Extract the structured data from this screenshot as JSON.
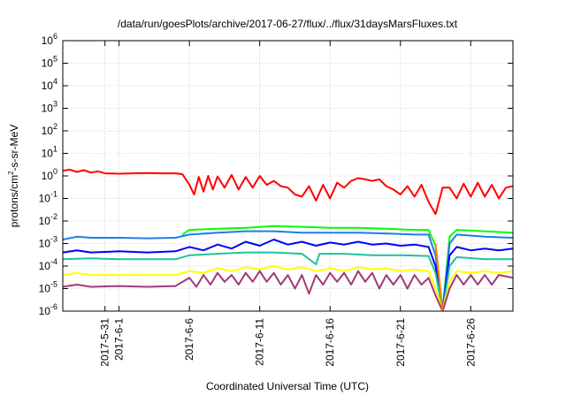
{
  "chart_data": {
    "type": "line",
    "title": "/data/run/goesPlots/archive/2017-06-27/flux/../flux/31daysMarsFluxes.txt",
    "xlabel": "Coordinated Universal Time (UTC)",
    "ylabel_parts": {
      "base": "protons/cm",
      "sup": "2",
      "rest": "-s-sr-MeV"
    },
    "xlim": [
      "2017-05-28",
      "2017-06-29"
    ],
    "x_ticks": [
      {
        "date": "2017-05-31",
        "label": "2017-5-31"
      },
      {
        "date": "2017-06-01",
        "label": "2017-6-1"
      },
      {
        "date": "2017-06-06",
        "label": "2017-6-6"
      },
      {
        "date": "2017-06-11",
        "label": "2017-6-11"
      },
      {
        "date": "2017-06-16",
        "label": "2017-6-16"
      },
      {
        "date": "2017-06-21",
        "label": "2017-6-21"
      },
      {
        "date": "2017-06-26",
        "label": "2017-6-26"
      }
    ],
    "y_scale": "log",
    "ylim": [
      1e-06,
      1000000.0
    ],
    "y_ticks": [
      {
        "base": "10",
        "exp": "-6"
      },
      {
        "base": "10",
        "exp": "-5"
      },
      {
        "base": "10",
        "exp": "-4"
      },
      {
        "base": "10",
        "exp": "-3"
      },
      {
        "base": "10",
        "exp": "-2"
      },
      {
        "base": "10",
        "exp": "-1"
      },
      {
        "base": "10",
        "exp": "0"
      },
      {
        "base": "10",
        "exp": "1"
      },
      {
        "base": "10",
        "exp": "2"
      },
      {
        "base": "10",
        "exp": "3"
      },
      {
        "base": "10",
        "exp": "4"
      },
      {
        "base": "10",
        "exp": "5"
      },
      {
        "base": "10",
        "exp": "6"
      }
    ],
    "grid": true,
    "series": [
      {
        "color": "#ff0000",
        "points": [
          [
            "2017-05-28",
            1.7
          ],
          [
            "2017-05-28T12:00",
            1.9
          ],
          [
            "2017-05-29",
            1.5
          ],
          [
            "2017-05-29T12:00",
            1.8
          ],
          [
            "2017-05-30",
            1.4
          ],
          [
            "2017-05-30T12:00",
            1.6
          ],
          [
            "2017-05-31",
            1.3
          ],
          [
            "2017-06-01",
            1.25
          ],
          [
            "2017-06-02",
            1.3
          ],
          [
            "2017-06-03",
            1.35
          ],
          [
            "2017-06-04",
            1.3
          ],
          [
            "2017-06-05",
            1.3
          ],
          [
            "2017-06-05T12:00",
            1.2
          ],
          [
            "2017-06-06",
            0.4
          ],
          [
            "2017-06-06T08:00",
            0.15
          ],
          [
            "2017-06-06T16:00",
            0.9
          ],
          [
            "2017-06-07",
            0.2
          ],
          [
            "2017-06-07T08:00",
            1.0
          ],
          [
            "2017-06-07T16:00",
            0.25
          ],
          [
            "2017-06-08",
            0.95
          ],
          [
            "2017-06-08T12:00",
            0.3
          ],
          [
            "2017-06-09",
            1.1
          ],
          [
            "2017-06-09T12:00",
            0.25
          ],
          [
            "2017-06-10",
            0.9
          ],
          [
            "2017-06-10T12:00",
            0.3
          ],
          [
            "2017-06-11",
            1.0
          ],
          [
            "2017-06-11T12:00",
            0.4
          ],
          [
            "2017-06-12",
            0.6
          ],
          [
            "2017-06-12T12:00",
            0.35
          ],
          [
            "2017-06-13",
            0.3
          ],
          [
            "2017-06-13T12:00",
            0.15
          ],
          [
            "2017-06-14",
            0.12
          ],
          [
            "2017-06-14T12:00",
            0.35
          ],
          [
            "2017-06-15",
            0.08
          ],
          [
            "2017-06-15T12:00",
            0.4
          ],
          [
            "2017-06-16",
            0.1
          ],
          [
            "2017-06-16T12:00",
            0.5
          ],
          [
            "2017-06-17",
            0.3
          ],
          [
            "2017-06-17T12:00",
            0.6
          ],
          [
            "2017-06-18",
            0.8
          ],
          [
            "2017-06-18T12:00",
            0.7
          ],
          [
            "2017-06-19",
            0.6
          ],
          [
            "2017-06-19T12:00",
            0.7
          ],
          [
            "2017-06-20",
            0.35
          ],
          [
            "2017-06-20T12:00",
            0.25
          ],
          [
            "2017-06-21",
            0.15
          ],
          [
            "2017-06-21T12:00",
            0.35
          ],
          [
            "2017-06-22",
            0.12
          ],
          [
            "2017-06-22T12:00",
            0.4
          ],
          [
            "2017-06-23",
            0.07
          ],
          [
            "2017-06-23T12:00",
            0.02
          ],
          [
            "2017-06-24",
            0.3
          ],
          [
            "2017-06-24T12:00",
            0.3
          ],
          [
            "2017-06-25",
            0.1
          ],
          [
            "2017-06-25T12:00",
            0.45
          ],
          [
            "2017-06-26",
            0.12
          ],
          [
            "2017-06-26T12:00",
            0.5
          ],
          [
            "2017-06-27",
            0.12
          ],
          [
            "2017-06-27T12:00",
            0.4
          ],
          [
            "2017-06-28",
            0.1
          ],
          [
            "2017-06-28T12:00",
            0.3
          ],
          [
            "2017-06-29",
            0.35
          ]
        ]
      },
      {
        "color": "#00ff00",
        "points": [
          [
            "2017-06-05T12:00",
            0.0025
          ],
          [
            "2017-06-06",
            0.004
          ],
          [
            "2017-06-08",
            0.0045
          ],
          [
            "2017-06-10",
            0.005
          ],
          [
            "2017-06-12",
            0.006
          ],
          [
            "2017-06-14",
            0.0055
          ],
          [
            "2017-06-16",
            0.005
          ],
          [
            "2017-06-18",
            0.005
          ],
          [
            "2017-06-20",
            0.0045
          ],
          [
            "2017-06-22",
            0.004
          ],
          [
            "2017-06-23",
            0.004
          ],
          [
            "2017-06-23T12:00",
            0.0008
          ],
          [
            "2017-06-24",
            1e-06
          ],
          [
            "2017-06-24T12:00",
            0.002
          ],
          [
            "2017-06-25",
            0.004
          ],
          [
            "2017-06-27",
            0.0035
          ],
          [
            "2017-06-29",
            0.003
          ]
        ]
      },
      {
        "color": "#1a7fe8",
        "points": [
          [
            "2017-05-28",
            0.0015
          ],
          [
            "2017-05-29",
            0.002
          ],
          [
            "2017-05-30",
            0.0018
          ],
          [
            "2017-06-01",
            0.0018
          ],
          [
            "2017-06-03",
            0.0017
          ],
          [
            "2017-06-05",
            0.0018
          ],
          [
            "2017-06-06",
            0.0025
          ],
          [
            "2017-06-08",
            0.003
          ],
          [
            "2017-06-10",
            0.0035
          ],
          [
            "2017-06-12",
            0.0035
          ],
          [
            "2017-06-14",
            0.003
          ],
          [
            "2017-06-16",
            0.003
          ],
          [
            "2017-06-18",
            0.003
          ],
          [
            "2017-06-20",
            0.0028
          ],
          [
            "2017-06-22",
            0.0025
          ],
          [
            "2017-06-23",
            0.0025
          ],
          [
            "2017-06-23T12:00",
            0.0003
          ],
          [
            "2017-06-24",
            1e-06
          ],
          [
            "2017-06-24T12:00",
            0.001
          ],
          [
            "2017-06-25",
            0.0025
          ],
          [
            "2017-06-27",
            0.002
          ],
          [
            "2017-06-29",
            0.0018
          ]
        ]
      },
      {
        "color": "#0000ff",
        "points": [
          [
            "2017-05-28",
            0.0004
          ],
          [
            "2017-05-29",
            0.0005
          ],
          [
            "2017-05-30",
            0.0004
          ],
          [
            "2017-06-01",
            0.00045
          ],
          [
            "2017-06-03",
            0.0004
          ],
          [
            "2017-06-05",
            0.00045
          ],
          [
            "2017-06-06",
            0.0007
          ],
          [
            "2017-06-07",
            0.0005
          ],
          [
            "2017-06-08",
            0.0009
          ],
          [
            "2017-06-09",
            0.0006
          ],
          [
            "2017-06-10",
            0.0012
          ],
          [
            "2017-06-11",
            0.0008
          ],
          [
            "2017-06-12",
            0.0015
          ],
          [
            "2017-06-13",
            0.0009
          ],
          [
            "2017-06-14",
            0.0012
          ],
          [
            "2017-06-15",
            0.0008
          ],
          [
            "2017-06-16",
            0.0011
          ],
          [
            "2017-06-17",
            0.0009
          ],
          [
            "2017-06-18",
            0.0012
          ],
          [
            "2017-06-19",
            0.0009
          ],
          [
            "2017-06-20",
            0.001
          ],
          [
            "2017-06-21",
            0.0008
          ],
          [
            "2017-06-22",
            0.0009
          ],
          [
            "2017-06-23",
            0.0007
          ],
          [
            "2017-06-23T12:00",
            0.0001
          ],
          [
            "2017-06-24",
            1e-06
          ],
          [
            "2017-06-24T12:00",
            0.0003
          ],
          [
            "2017-06-25",
            0.0007
          ],
          [
            "2017-06-26",
            0.0005
          ],
          [
            "2017-06-27",
            0.0006
          ],
          [
            "2017-06-28",
            0.0005
          ],
          [
            "2017-06-29",
            0.0006
          ]
        ]
      },
      {
        "color": "#20c0a0",
        "points": [
          [
            "2017-05-28",
            0.0002
          ],
          [
            "2017-05-30",
            0.00022
          ],
          [
            "2017-06-01",
            0.0002
          ],
          [
            "2017-06-03",
            0.0002
          ],
          [
            "2017-06-05",
            0.0002
          ],
          [
            "2017-06-06",
            0.0003
          ],
          [
            "2017-06-08",
            0.00035
          ],
          [
            "2017-06-10",
            0.0004
          ],
          [
            "2017-06-12",
            0.0004
          ],
          [
            "2017-06-14",
            0.00035
          ],
          [
            "2017-06-15",
            0.00012
          ],
          [
            "2017-06-15T06:00",
            0.00035
          ],
          [
            "2017-06-17",
            0.00035
          ],
          [
            "2017-06-19",
            0.0003
          ],
          [
            "2017-06-21",
            0.0003
          ],
          [
            "2017-06-23",
            0.00028
          ],
          [
            "2017-06-23T12:00",
            5e-05
          ],
          [
            "2017-06-24",
            1e-06
          ],
          [
            "2017-06-24T12:00",
            0.0001
          ],
          [
            "2017-06-25",
            0.00025
          ],
          [
            "2017-06-27",
            0.0002
          ],
          [
            "2017-06-29",
            0.0002
          ]
        ]
      },
      {
        "color": "#ffff00",
        "points": [
          [
            "2017-05-28",
            4e-05
          ],
          [
            "2017-05-29",
            5e-05
          ],
          [
            "2017-05-30",
            4e-05
          ],
          [
            "2017-06-01",
            4e-05
          ],
          [
            "2017-06-03",
            4e-05
          ],
          [
            "2017-06-05",
            4e-05
          ],
          [
            "2017-06-06",
            6e-05
          ],
          [
            "2017-06-07",
            5e-05
          ],
          [
            "2017-06-08",
            8e-05
          ],
          [
            "2017-06-09",
            6e-05
          ],
          [
            "2017-06-10",
            9e-05
          ],
          [
            "2017-06-11",
            7e-05
          ],
          [
            "2017-06-12",
            0.0001
          ],
          [
            "2017-06-13",
            7e-05
          ],
          [
            "2017-06-14",
            9e-05
          ],
          [
            "2017-06-15",
            6e-05
          ],
          [
            "2017-06-16",
            8e-05
          ],
          [
            "2017-06-17",
            6e-05
          ],
          [
            "2017-06-18",
            9e-05
          ],
          [
            "2017-06-19",
            7e-05
          ],
          [
            "2017-06-20",
            8e-05
          ],
          [
            "2017-06-21",
            6e-05
          ],
          [
            "2017-06-22",
            7e-05
          ],
          [
            "2017-06-23",
            6e-05
          ],
          [
            "2017-06-23T12:00",
            1e-05
          ],
          [
            "2017-06-24",
            1e-06
          ],
          [
            "2017-06-24T12:00",
            2e-05
          ],
          [
            "2017-06-25",
            6e-05
          ],
          [
            "2017-06-26",
            5e-05
          ],
          [
            "2017-06-27",
            6e-05
          ],
          [
            "2017-06-28",
            5e-05
          ],
          [
            "2017-06-29",
            6e-05
          ]
        ]
      },
      {
        "color": "#a03a78",
        "points": [
          [
            "2017-05-28",
            1.2e-05
          ],
          [
            "2017-05-29",
            1.5e-05
          ],
          [
            "2017-05-30",
            1.2e-05
          ],
          [
            "2017-06-01",
            1.3e-05
          ],
          [
            "2017-06-03",
            1.2e-05
          ],
          [
            "2017-06-05",
            1.3e-05
          ],
          [
            "2017-06-06",
            3e-05
          ],
          [
            "2017-06-06T12:00",
            1.2e-05
          ],
          [
            "2017-06-07",
            4e-05
          ],
          [
            "2017-06-07T12:00",
            1.5e-05
          ],
          [
            "2017-06-08",
            5e-05
          ],
          [
            "2017-06-08T12:00",
            2e-05
          ],
          [
            "2017-06-09",
            4e-05
          ],
          [
            "2017-06-09T12:00",
            1.5e-05
          ],
          [
            "2017-06-10",
            5e-05
          ],
          [
            "2017-06-10T12:00",
            2e-05
          ],
          [
            "2017-06-11",
            6e-05
          ],
          [
            "2017-06-11T12:00",
            2e-05
          ],
          [
            "2017-06-12",
            5e-05
          ],
          [
            "2017-06-12T12:00",
            1.5e-05
          ],
          [
            "2017-06-13",
            4e-05
          ],
          [
            "2017-06-13T12:00",
            1e-05
          ],
          [
            "2017-06-14",
            4e-05
          ],
          [
            "2017-06-14T12:00",
            6e-06
          ],
          [
            "2017-06-15",
            4e-05
          ],
          [
            "2017-06-15T12:00",
            1.5e-05
          ],
          [
            "2017-06-16",
            5e-05
          ],
          [
            "2017-06-16T12:00",
            2e-05
          ],
          [
            "2017-06-17",
            5e-05
          ],
          [
            "2017-06-17T12:00",
            1.5e-05
          ],
          [
            "2017-06-18",
            6e-05
          ],
          [
            "2017-06-18T12:00",
            2e-05
          ],
          [
            "2017-06-19",
            5e-05
          ],
          [
            "2017-06-19T12:00",
            1e-05
          ],
          [
            "2017-06-20",
            4e-05
          ],
          [
            "2017-06-20T12:00",
            1.5e-05
          ],
          [
            "2017-06-21",
            4e-05
          ],
          [
            "2017-06-21T12:00",
            1e-05
          ],
          [
            "2017-06-22",
            4e-05
          ],
          [
            "2017-06-22T12:00",
            1.5e-05
          ],
          [
            "2017-06-23",
            3e-05
          ],
          [
            "2017-06-23T12:00",
            5e-06
          ],
          [
            "2017-06-24",
            1e-06
          ],
          [
            "2017-06-24T12:00",
            1e-05
          ],
          [
            "2017-06-25",
            4e-05
          ],
          [
            "2017-06-25T12:00",
            1.5e-05
          ],
          [
            "2017-06-26",
            4e-05
          ],
          [
            "2017-06-26T12:00",
            1.5e-05
          ],
          [
            "2017-06-27",
            4e-05
          ],
          [
            "2017-06-27T12:00",
            1.5e-05
          ],
          [
            "2017-06-28",
            4e-05
          ],
          [
            "2017-06-29",
            3e-05
          ]
        ]
      },
      {
        "color": "#ff8000",
        "points": [
          [
            "2017-06-23T12:00",
            0.001
          ],
          [
            "2017-06-24",
            1e-06
          ]
        ]
      }
    ]
  }
}
